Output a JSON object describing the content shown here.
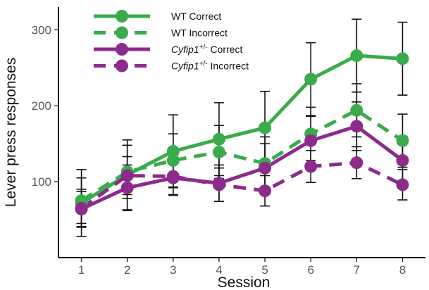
{
  "chart_data": {
    "type": "line",
    "xlabel": "Session",
    "ylabel": "Lever press responses",
    "x": [
      1,
      2,
      3,
      4,
      5,
      6,
      7,
      8
    ],
    "xlim": [
      0.5,
      8.5
    ],
    "ylim": [
      0,
      330
    ],
    "yticks": [
      100,
      200,
      300
    ],
    "grid": false,
    "legend_position": "top-left",
    "series": [
      {
        "name": "WT Correct",
        "legend_parts": [
          {
            "text": "WT Correct",
            "italic": false,
            "sup": false
          }
        ],
        "color": "#3aab4a",
        "dashed": false,
        "values": [
          72,
          109,
          140,
          156,
          171,
          235,
          266,
          262
        ],
        "err": [
          44,
          46,
          48,
          48,
          48,
          48,
          48,
          48
        ]
      },
      {
        "name": "WT Incorrect",
        "legend_parts": [
          {
            "text": "WT Incorrect",
            "italic": false,
            "sup": false
          }
        ],
        "color": "#3aab4a",
        "dashed": true,
        "values": [
          75,
          113,
          128,
          139,
          124,
          163,
          194,
          154
        ],
        "err": [
          30,
          35,
          35,
          35,
          35,
          35,
          35,
          35
        ]
      },
      {
        "name": "Cyfip1+/- Correct",
        "legend_parts": [
          {
            "text": "Cyfip1",
            "italic": true,
            "sup": false
          },
          {
            "text": "+/-",
            "italic": false,
            "sup": true
          },
          {
            "text": " Correct",
            "italic": false,
            "sup": false
          }
        ],
        "color": "#8b2b8b",
        "dashed": false,
        "values": [
          64,
          92,
          105,
          98,
          118,
          154,
          173,
          128
        ],
        "err": [
          23,
          30,
          22,
          24,
          32,
          32,
          32,
          32
        ]
      },
      {
        "name": "Cyfip1+/- Incorrect",
        "legend_parts": [
          {
            "text": "Cyfip1",
            "italic": true,
            "sup": false
          },
          {
            "text": "+/-",
            "italic": false,
            "sup": true
          },
          {
            "text": " Incorrect",
            "italic": false,
            "sup": false
          }
        ],
        "color": "#8b2b8b",
        "dashed": true,
        "values": [
          65,
          108,
          107,
          96,
          88,
          120,
          125,
          96
        ],
        "err": [
          25,
          25,
          25,
          22,
          20,
          21,
          21,
          20
        ]
      }
    ]
  }
}
